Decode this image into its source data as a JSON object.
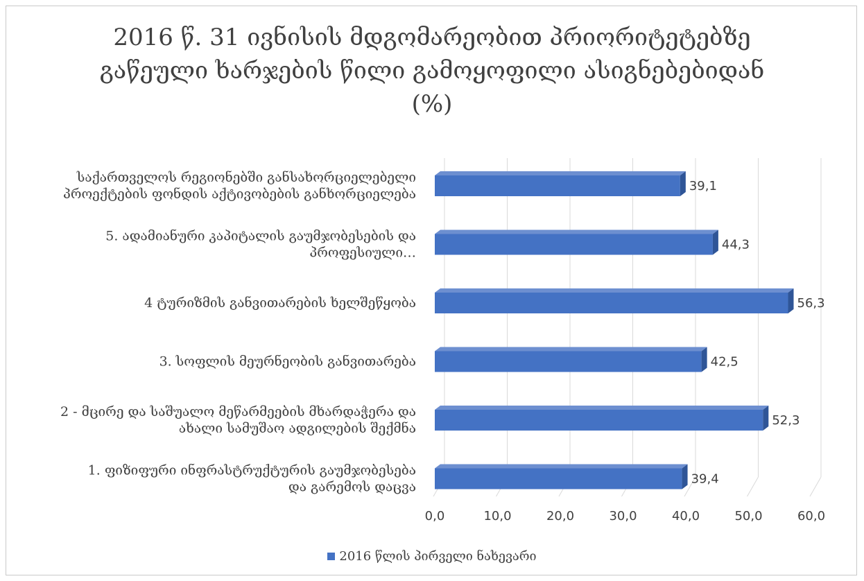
{
  "chart_data": {
    "type": "bar",
    "orientation": "horizontal",
    "title_lines": [
      "2016 წ. 31 ივნისის მდგომარეობით პრიორიტეტებზე",
      "გაწეული ხარჯების წილი გამოყოფილი ასიგნებებიდან",
      "(%)"
    ],
    "categories": [
      [
        "საქართველოს რეგიონებში განსახორციელებელი",
        "პროექტების ფონდის აქტივობების განხორციელება"
      ],
      [
        "5. ადამიანური კაპიტალის გაუმჯობესების და",
        "პროფესიული…"
      ],
      [
        "4 ტურიზმის განვითარების ხელშეწყობა"
      ],
      [
        "3. სოფლის მეურნეობის განვითარება"
      ],
      [
        "2 - მცირე და საშუალო  მეწარმეების მხარდაჭერა და",
        "ახალი სამუშაო ადგილების შექმნა"
      ],
      [
        "1.   ფიზიფური ინფრასტრუქტურის გაუმჯობესება",
        "და გარემოს დაცვა"
      ]
    ],
    "series": [
      {
        "name": "2016 წლის პირველი ნახევარი",
        "values": [
          39.1,
          44.3,
          56.3,
          42.5,
          52.3,
          39.4
        ],
        "value_labels": [
          "39,1",
          "44,3",
          "56,3",
          "42,5",
          "52,3",
          "39,4"
        ],
        "color": "#4472c4"
      }
    ],
    "xlim": [
      0,
      60
    ],
    "x_ticks": [
      "0,0",
      "10,0",
      "20,0",
      "30,0",
      "40,0",
      "50,0",
      "60,0"
    ],
    "grid": true,
    "legend_position": "bottom"
  }
}
